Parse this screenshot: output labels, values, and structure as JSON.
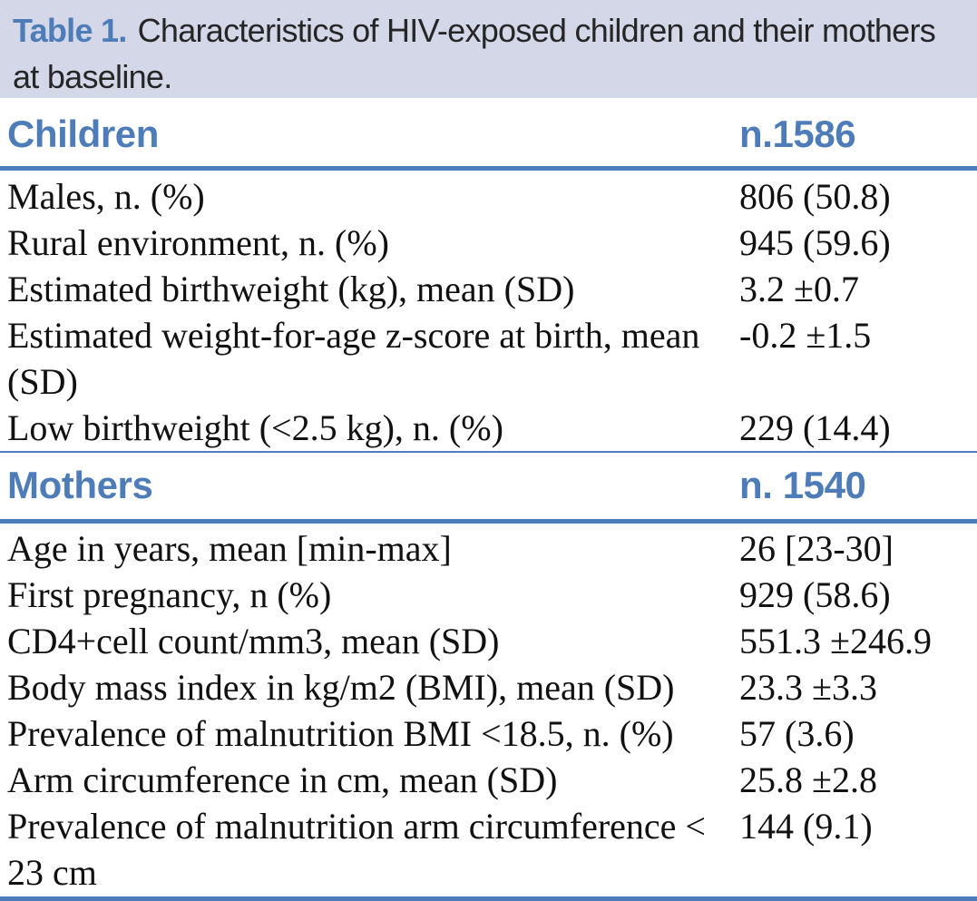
{
  "colors": {
    "accent_blue": "#4d7cb8",
    "caption_bar_background": "#d3d7e8",
    "body_text": "#111111",
    "caption_text": "#262626"
  },
  "caption": {
    "label": "Table 1.",
    "text": "Characteristics of HIV-exposed children and their mothers at baseline."
  },
  "sections": [
    {
      "header": {
        "title": "Children",
        "count": "n.1586"
      },
      "rows": [
        {
          "label": "Males, n. (%)",
          "value": "806 (50.8)"
        },
        {
          "label": "Rural environment, n. (%)",
          "value": "945 (59.6)"
        },
        {
          "label": "Estimated birthweight (kg), mean (SD)",
          "value": "3.2 ±0.7"
        },
        {
          "label": "Estimated weight-for-age z-score at birth, mean (SD)",
          "value": "-0.2 ±1.5"
        },
        {
          "label": "Low birthweight (<2.5 kg), n. (%)",
          "value": "229 (14.4)"
        }
      ]
    },
    {
      "header": {
        "title": "Mothers",
        "count": "n. 1540"
      },
      "rows": [
        {
          "label": "Age in years, mean [min-max]",
          "value": "26 [23-30]"
        },
        {
          "label": "First pregnancy, n (%)",
          "value": "929 (58.6)"
        },
        {
          "label": "CD4+cell count/mm3, mean (SD)",
          "value": "551.3 ±246.9"
        },
        {
          "label": "Body mass index in kg/m2 (BMI), mean (SD)",
          "value": "23.3 ±3.3"
        },
        {
          "label": "Prevalence of malnutrition BMI <18.5, n. (%)",
          "value": "57 (3.6)"
        },
        {
          "label": "Arm circumference in cm, mean (SD)",
          "value": "25.8 ±2.8"
        },
        {
          "label": "Prevalence of malnutrition arm circumference < 23 cm",
          "value": "144 (9.1)"
        }
      ]
    }
  ]
}
